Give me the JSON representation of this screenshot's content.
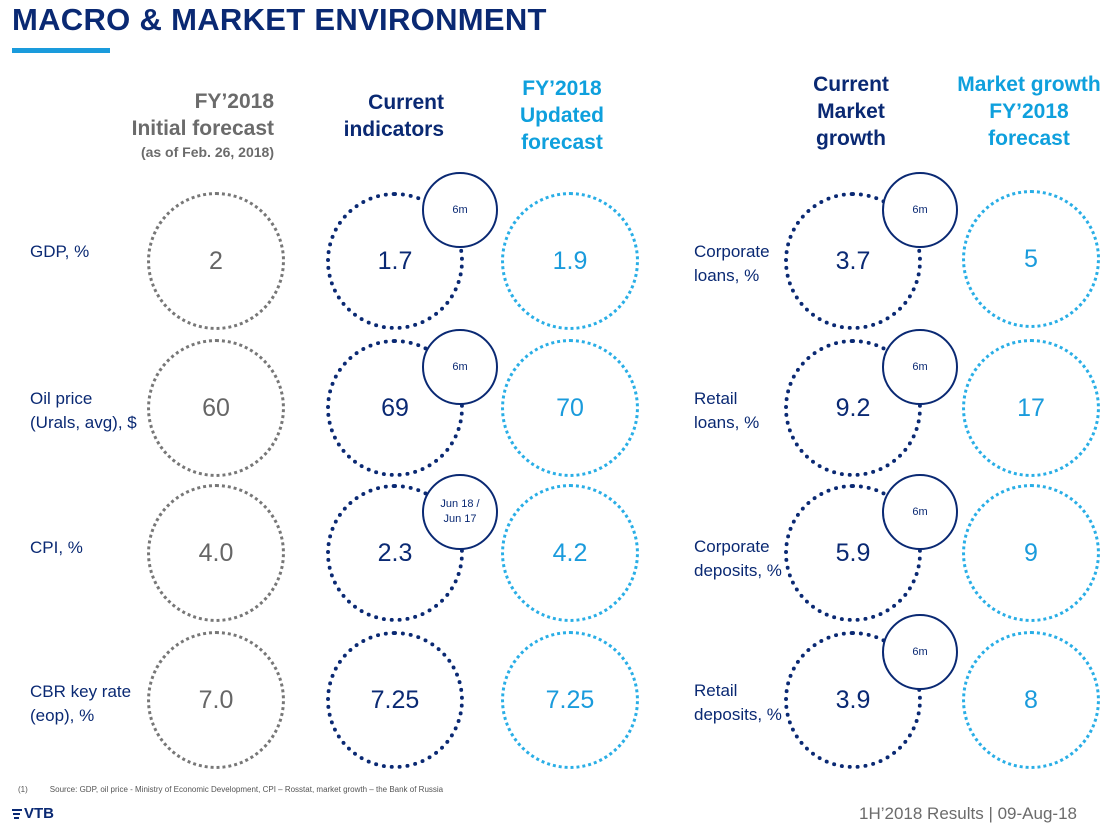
{
  "title": "MACRO & MARKET ENVIRONMENT",
  "headers": {
    "initial": {
      "line1": "FY’2018",
      "line2": "Initial forecast",
      "line3": "(as of Feb. 26, 2018)"
    },
    "current": {
      "line1": "Current",
      "line2": "indicators"
    },
    "updated": {
      "line1": "FY’2018",
      "line2": "Updated",
      "line3": "forecast"
    },
    "market_current": {
      "line1": "Current",
      "line2": "Market",
      "line3": "growth"
    },
    "market_forecast": {
      "line1": "Market growth",
      "line2": "FY’2018",
      "line3": "forecast"
    }
  },
  "macro_rows": [
    {
      "label1": "GDP, %",
      "label2": "",
      "initial": "2",
      "current": "1.7",
      "badge1": "6m",
      "badge2": "",
      "updated": "1.9"
    },
    {
      "label1": "Oil price",
      "label2": "(Urals, avg), $",
      "initial": "60",
      "current": "69",
      "badge1": "6m",
      "badge2": "",
      "updated": "70"
    },
    {
      "label1": "CPI, %",
      "label2": "",
      "initial": "4.0",
      "current": "2.3",
      "badge1": "Jun 18 /",
      "badge2": "Jun 17",
      "updated": "4.2"
    },
    {
      "label1": "CBR key rate",
      "label2": "(eop), %",
      "initial": "7.0",
      "current": "7.25",
      "badge1": "",
      "badge2": "",
      "updated": "7.25"
    }
  ],
  "market_rows": [
    {
      "label1": "Corporate",
      "label2": "loans, %",
      "current": "3.7",
      "badge": "6m",
      "forecast": "5"
    },
    {
      "label1": "Retail",
      "label2": "loans, %",
      "current": "9.2",
      "badge": "6m",
      "forecast": "17"
    },
    {
      "label1": "Corporate",
      "label2": "deposits, %",
      "current": "5.9",
      "badge": "6m",
      "forecast": "9"
    },
    {
      "label1": "Retail",
      "label2": "deposits, %",
      "current": "3.9",
      "badge": "6m",
      "forecast": "8"
    }
  ],
  "footnote": {
    "ref": "(1)",
    "text": "Source: GDP, oil price - Ministry of Economic Development, CPI – Rosstat, market growth – the Bank of Russia"
  },
  "logo": "VTB",
  "footer": "1H’2018 Results |  09-Aug-18",
  "colors": {
    "navy": "#0a2973",
    "cyan": "#1a9bdc",
    "grey": "#6b6b6b"
  },
  "icons": [
    "vtb-logo-icon"
  ]
}
